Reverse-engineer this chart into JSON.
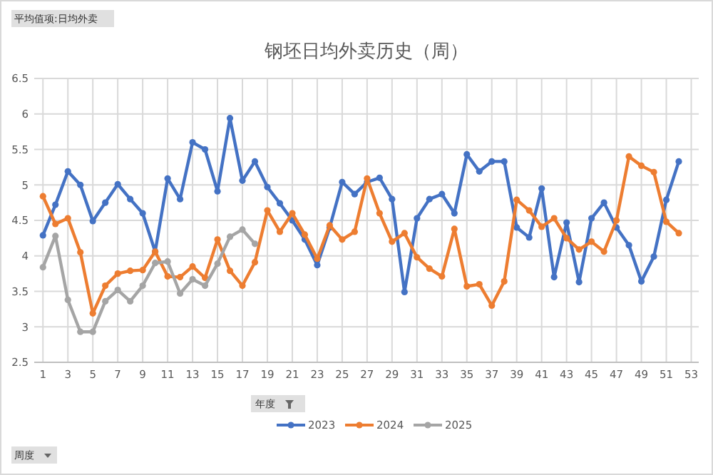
{
  "chart_data": {
    "type": "line",
    "title": "钢坯日均外卖历史（周）",
    "annotations": [
      "平均值项:日均外卖",
      "年度",
      "周度"
    ],
    "xlim": [
      0.3,
      53.6
    ],
    "xticks": [
      1,
      3,
      5,
      7,
      9,
      11,
      13,
      15,
      17,
      19,
      21,
      23,
      25,
      27,
      29,
      31,
      33,
      35,
      37,
      39,
      41,
      43,
      45,
      47,
      49,
      51,
      53
    ],
    "ylim": [
      2.5,
      6.5
    ],
    "yticks": [
      2.5,
      3,
      3.5,
      4,
      4.5,
      5,
      5.5,
      6,
      6.5
    ],
    "x": [
      1,
      2,
      3,
      4,
      5,
      6,
      7,
      8,
      9,
      10,
      11,
      12,
      13,
      14,
      15,
      16,
      17,
      18,
      19,
      20,
      21,
      22,
      23,
      24,
      25,
      26,
      27,
      28,
      29,
      30,
      31,
      32,
      33,
      34,
      35,
      36,
      37,
      38,
      39,
      40,
      41,
      42,
      43,
      44,
      45,
      46,
      47,
      48,
      49,
      50,
      51,
      52
    ],
    "grid": true,
    "legend": "bottom",
    "marker": "circle",
    "line_style": "solid",
    "series": [
      {
        "name": "2023",
        "color": "#4472c4",
        "values": [
          4.29,
          4.72,
          5.19,
          5.0,
          4.49,
          4.75,
          5.01,
          4.8,
          4.6,
          4.06,
          5.09,
          4.8,
          5.6,
          5.5,
          4.91,
          5.94,
          5.06,
          5.33,
          4.97,
          4.74,
          4.5,
          4.23,
          3.87,
          4.4,
          5.04,
          4.87,
          5.04,
          5.1,
          4.8,
          3.49,
          4.53,
          4.8,
          4.87,
          4.6,
          5.43,
          5.19,
          5.33,
          5.33,
          4.4,
          4.26,
          4.95,
          3.7,
          4.47,
          3.63,
          4.53,
          4.75,
          4.4,
          4.15,
          3.64,
          3.99,
          4.79,
          5.33
        ]
      },
      {
        "name": "2024",
        "color": "#ed7d31",
        "values": [
          4.84,
          4.45,
          4.53,
          4.05,
          3.19,
          3.58,
          3.75,
          3.79,
          3.8,
          4.06,
          3.71,
          3.7,
          3.85,
          3.69,
          4.23,
          3.79,
          3.58,
          3.91,
          4.64,
          4.34,
          4.6,
          4.3,
          3.96,
          4.43,
          4.23,
          4.34,
          5.09,
          4.6,
          4.2,
          4.32,
          3.98,
          3.82,
          3.71,
          4.38,
          3.57,
          3.6,
          3.3,
          3.64,
          4.79,
          4.64,
          4.41,
          4.53,
          4.25,
          4.09,
          4.2,
          4.06,
          4.5,
          5.4,
          5.27,
          5.18,
          4.48,
          4.32
        ]
      },
      {
        "name": "2025",
        "color": "#a5a5a5",
        "values": [
          3.84,
          4.28,
          3.38,
          2.93,
          2.93,
          3.36,
          3.52,
          3.36,
          3.58,
          3.9,
          3.92,
          3.47,
          3.67,
          3.58,
          3.89,
          4.27,
          4.37,
          4.17,
          null,
          null,
          null,
          null,
          null,
          null,
          null,
          null,
          null,
          null,
          null,
          null,
          null,
          null,
          null,
          null,
          null,
          null,
          null,
          null,
          null,
          null,
          null,
          null,
          null,
          null,
          null,
          null,
          null,
          null,
          null,
          null,
          null,
          null
        ]
      }
    ]
  }
}
